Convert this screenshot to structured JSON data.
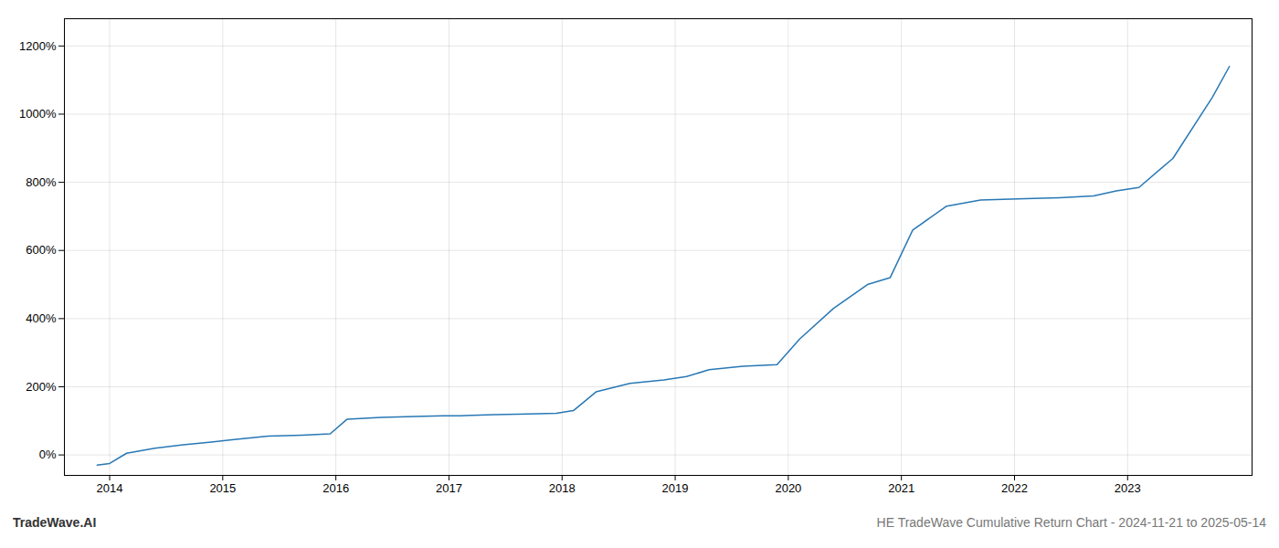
{
  "chart_data": {
    "type": "line",
    "title": "HE TradeWave Cumulative Return Chart - 2024-11-21 to 2025-05-14",
    "annotations": [
      "TradeWave.AI"
    ],
    "color": "#2878b5",
    "grid": true,
    "x": [
      2013.89,
      2014.0,
      2014.15,
      2014.4,
      2014.65,
      2014.9,
      2015.1,
      2015.4,
      2015.7,
      2015.95,
      2016.1,
      2016.4,
      2016.7,
      2016.95,
      2017.1,
      2017.4,
      2017.7,
      2017.95,
      2018.1,
      2018.3,
      2018.6,
      2018.9,
      2019.1,
      2019.3,
      2019.6,
      2019.9,
      2020.1,
      2020.4,
      2020.7,
      2020.9,
      2021.1,
      2021.4,
      2021.7,
      2021.9,
      2022.1,
      2022.4,
      2022.7,
      2022.9,
      2023.1,
      2023.4,
      2023.75,
      2023.9
    ],
    "values": [
      -30,
      -25,
      5,
      20,
      30,
      38,
      45,
      55,
      58,
      62,
      105,
      110,
      113,
      115,
      115,
      118,
      120,
      122,
      130,
      185,
      210,
      220,
      230,
      250,
      260,
      265,
      340,
      430,
      500,
      520,
      660,
      730,
      748,
      750,
      752,
      755,
      760,
      775,
      785,
      870,
      1050,
      1140
    ],
    "xlim": [
      2013.6,
      2024.1
    ],
    "xticks": [
      2014,
      2015,
      2016,
      2017,
      2018,
      2019,
      2020,
      2021,
      2022,
      2023
    ],
    "ylim": [
      -60,
      1280
    ],
    "yticks": [
      {
        "value": 0,
        "label": "0%"
      },
      {
        "value": 200,
        "label": "200%"
      },
      {
        "value": 400,
        "label": "400%"
      },
      {
        "value": 600,
        "label": "600%"
      },
      {
        "value": 800,
        "label": "800%"
      },
      {
        "value": 1000,
        "label": "1000%"
      },
      {
        "value": 1200,
        "label": "1200%"
      }
    ]
  }
}
